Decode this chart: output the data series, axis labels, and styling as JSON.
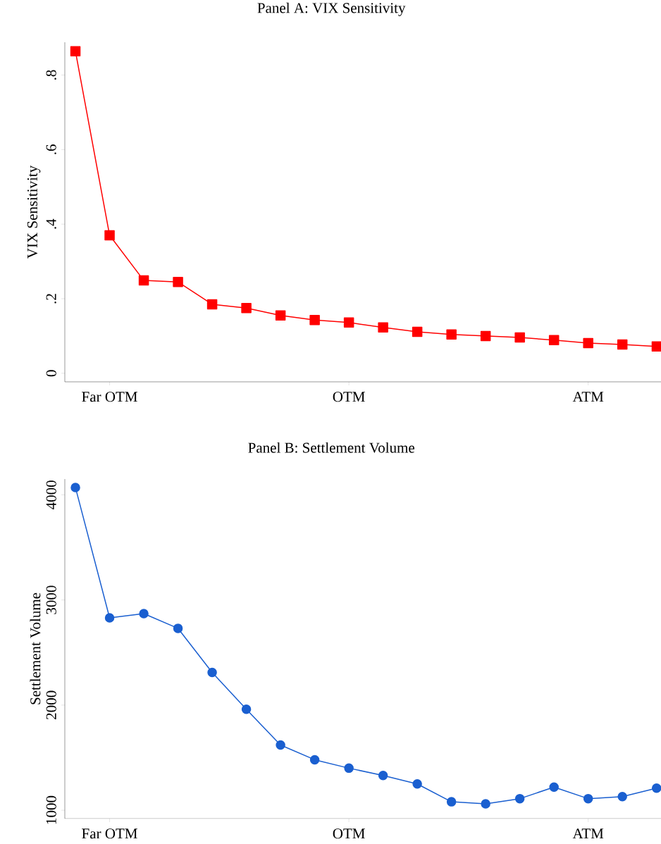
{
  "chart_data": [
    {
      "type": "line",
      "title": "Panel A: VIX Sensitivity",
      "ylabel": "VIX Sensitivity",
      "categories": [
        null,
        "Far OTM",
        null,
        null,
        null,
        null,
        null,
        null,
        "OTM",
        null,
        null,
        null,
        null,
        null,
        null,
        "ATM",
        null,
        null
      ],
      "series": [
        {
          "color": "#ff0000",
          "values": [
            0.864,
            0.37,
            0.249,
            0.245,
            0.185,
            0.175,
            0.155,
            0.143,
            0.136,
            0.123,
            0.111,
            0.104,
            0.1,
            0.096,
            0.089,
            0.081,
            0.077,
            0.072
          ]
        }
      ],
      "marker": "square",
      "line_style": "solid",
      "ylim": [
        -0.023,
        0.888
      ],
      "yticks": [
        0,
        {
          "value": 0.2,
          "label": ".2"
        },
        {
          "value": 0.4,
          "label": ".4"
        },
        {
          "value": 0.6,
          "label": ".6"
        },
        {
          "value": 0.8,
          "label": ".8"
        }
      ]
    },
    {
      "type": "line",
      "title": "Panel B: Settlement Volume",
      "ylabel": "Settlement Volume",
      "categories": [
        null,
        "Far OTM",
        null,
        null,
        null,
        null,
        null,
        null,
        "OTM",
        null,
        null,
        null,
        null,
        null,
        null,
        "ATM",
        null,
        null
      ],
      "series": [
        {
          "color": "#1a5fd0",
          "values": [
            4070,
            2830,
            2870,
            2730,
            2310,
            1960,
            1620,
            1480,
            1400,
            1330,
            1250,
            1080,
            1060,
            1110,
            1220,
            1110,
            1130,
            1210
          ]
        }
      ],
      "marker": "circle",
      "line_style": "solid",
      "ylim": [
        920,
        4150
      ],
      "yticks": [
        1000,
        2000,
        3000,
        4000
      ]
    }
  ]
}
